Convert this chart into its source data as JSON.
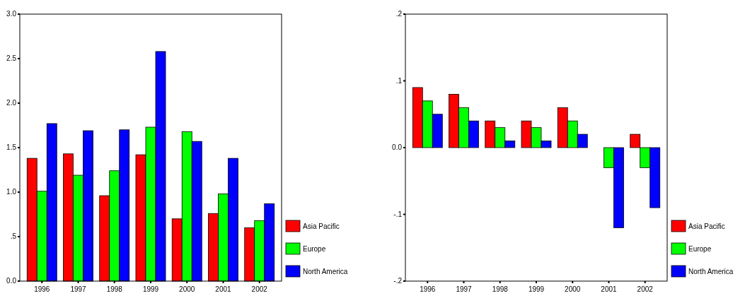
{
  "chart_data": [
    {
      "type": "bar",
      "categories": [
        "1996",
        "1997",
        "1998",
        "1999",
        "2000",
        "2001",
        "2002"
      ],
      "series": [
        {
          "name": "Asia Pacific",
          "color": "#ff0000",
          "values": [
            1.38,
            1.43,
            0.96,
            1.42,
            0.7,
            0.76,
            0.6
          ]
        },
        {
          "name": "Europe",
          "color": "#00ff00",
          "values": [
            1.01,
            1.19,
            1.24,
            1.73,
            1.68,
            0.98,
            0.68
          ]
        },
        {
          "name": "North America",
          "color": "#0000ff",
          "values": [
            1.77,
            1.69,
            1.7,
            2.58,
            1.57,
            1.38,
            0.87
          ]
        }
      ],
      "ylim": [
        0,
        3
      ],
      "yticks": [
        {
          "value": 0,
          "label": "0.0"
        },
        {
          "value": 0.5,
          "label": ".5"
        },
        {
          "value": 1,
          "label": "1.0"
        },
        {
          "value": 1.5,
          "label": "1.5"
        },
        {
          "value": 2,
          "label": "2.0"
        },
        {
          "value": 2.5,
          "label": "2.5"
        },
        {
          "value": 3,
          "label": "3.0"
        }
      ],
      "legend": "bottom right",
      "grid": false
    },
    {
      "type": "bar",
      "categories": [
        "1996",
        "1997",
        "1998",
        "1999",
        "2000",
        "2001",
        "2002"
      ],
      "series": [
        {
          "name": "Asia Pacific",
          "color": "#ff0000",
          "values": [
            0.09,
            0.08,
            0.04,
            0.04,
            0.06,
            0,
            0.02
          ]
        },
        {
          "name": "Europe",
          "color": "#00ff00",
          "values": [
            0.07,
            0.06,
            0.03,
            0.03,
            0.04,
            -0.03,
            -0.03
          ]
        },
        {
          "name": "North America",
          "color": "#0000ff",
          "values": [
            0.05,
            0.04,
            0.01,
            0.01,
            0.02,
            -0.12,
            -0.09
          ]
        }
      ],
      "ylim": [
        -0.2,
        0.2
      ],
      "yticks": [
        {
          "value": -0.2,
          "label": "-.2"
        },
        {
          "value": -0.1,
          "label": "-.1"
        },
        {
          "value": 0,
          "label": "0.0"
        },
        {
          "value": 0.1,
          "label": ".1"
        },
        {
          "value": 0.2,
          "label": ".2"
        }
      ],
      "legend": "bottom right",
      "grid": false
    }
  ]
}
